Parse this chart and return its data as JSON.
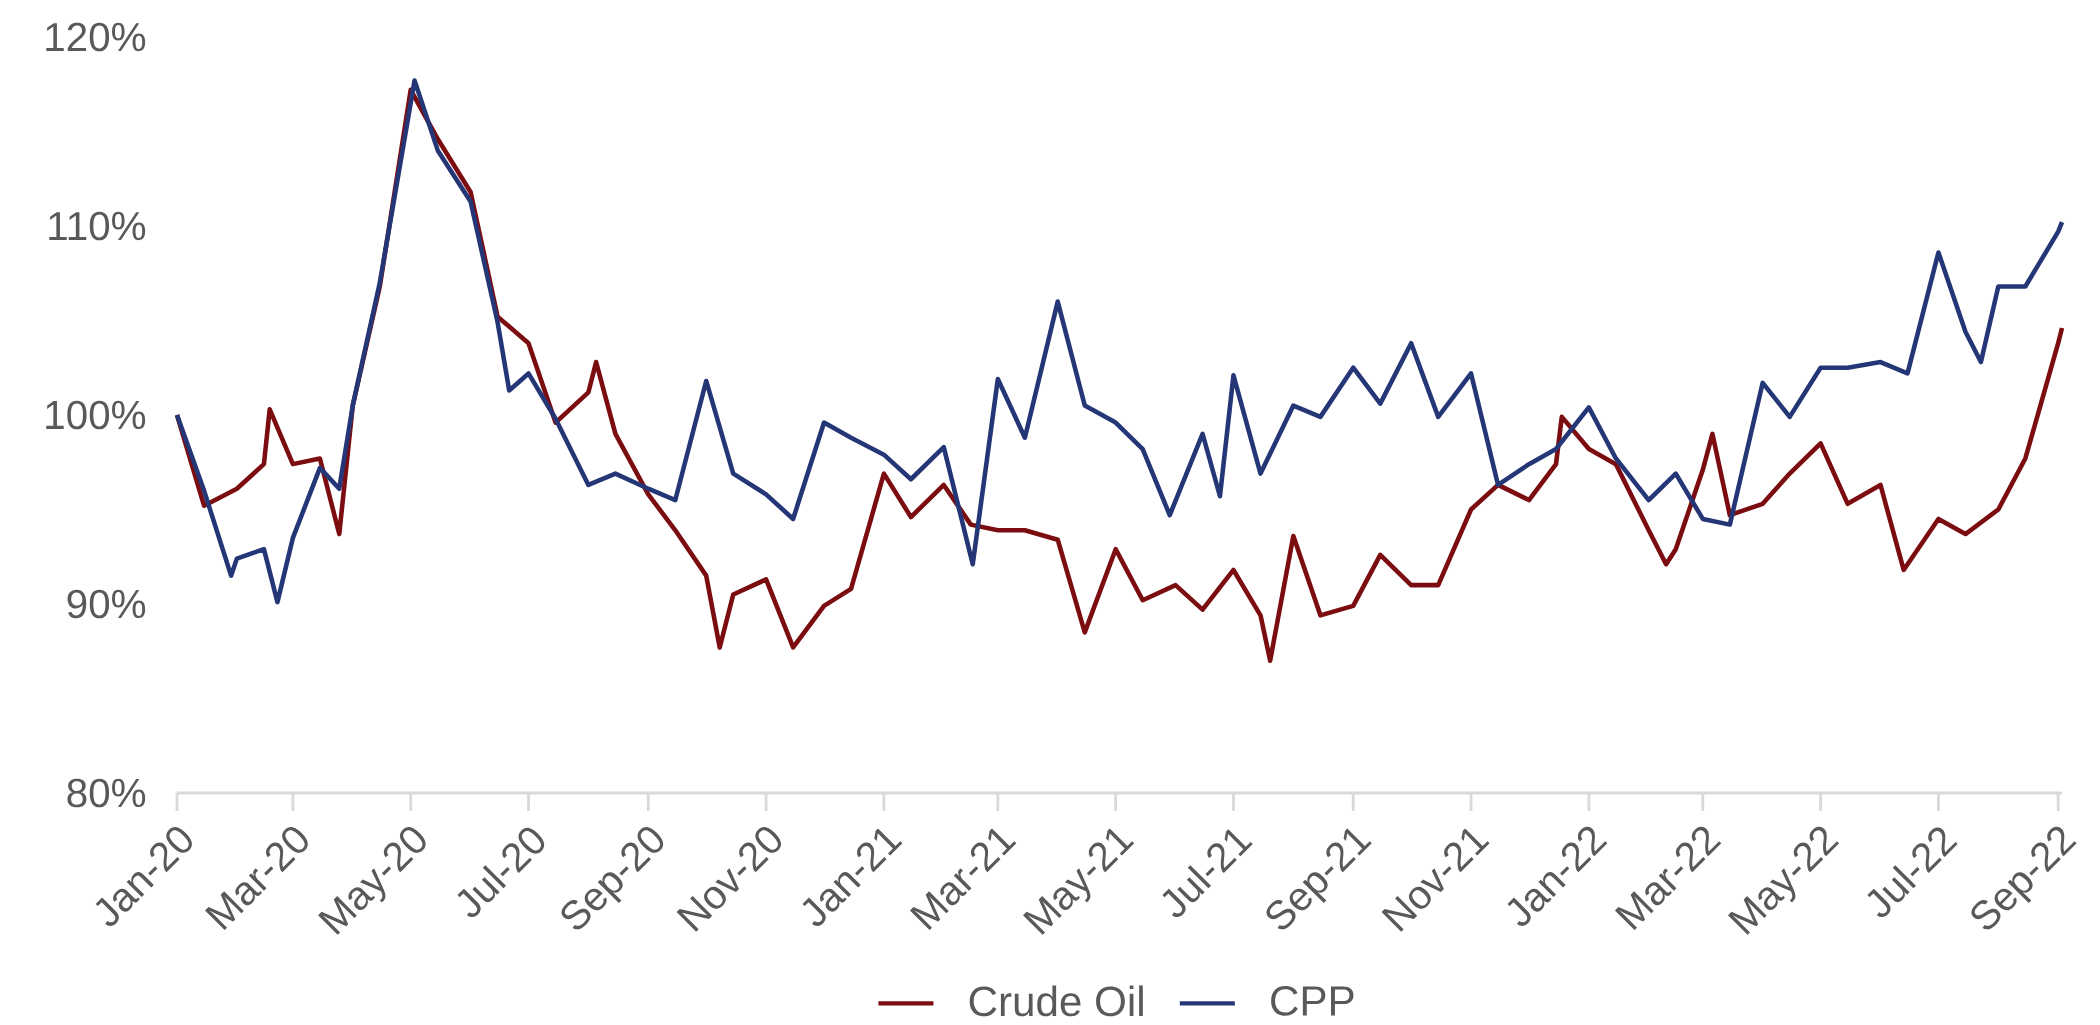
{
  "chart_data": {
    "type": "line",
    "xlim": [
      "2020-01-01",
      "2022-09-03"
    ],
    "xticks": [
      {
        "value": "2020-01-01",
        "label": "Jan-20"
      },
      {
        "value": "2020-03-01",
        "label": "Mar-20"
      },
      {
        "value": "2020-05-01",
        "label": "May-20"
      },
      {
        "value": "2020-07-01",
        "label": "Jul-20"
      },
      {
        "value": "2020-09-01",
        "label": "Sep-20"
      },
      {
        "value": "2020-11-01",
        "label": "Nov-20"
      },
      {
        "value": "2021-01-01",
        "label": "Jan-21"
      },
      {
        "value": "2021-03-01",
        "label": "Mar-21"
      },
      {
        "value": "2021-05-01",
        "label": "May-21"
      },
      {
        "value": "2021-07-01",
        "label": "Jul-21"
      },
      {
        "value": "2021-09-01",
        "label": "Sep-21"
      },
      {
        "value": "2021-11-01",
        "label": "Nov-21"
      },
      {
        "value": "2022-01-01",
        "label": "Jan-22"
      },
      {
        "value": "2022-03-01",
        "label": "Mar-22"
      },
      {
        "value": "2022-05-01",
        "label": "May-22"
      },
      {
        "value": "2022-07-01",
        "label": "Jul-22"
      },
      {
        "value": "2022-09-01",
        "label": "Sep-22"
      }
    ],
    "ylim": [
      80,
      120
    ],
    "yticks": [
      {
        "value": 80,
        "label": "80%"
      },
      {
        "value": 90,
        "label": "90%"
      },
      {
        "value": 100,
        "label": "100%"
      },
      {
        "value": 110,
        "label": "110%"
      },
      {
        "value": 120,
        "label": "120%"
      }
    ],
    "legend": "bottom",
    "series": [
      {
        "name": "Crude Oil",
        "color": "#7b0c10",
        "x": [
          "2020-01-01",
          "2020-01-15",
          "2020-02-01",
          "2020-02-15",
          "2020-02-18",
          "2020-03-01",
          "2020-03-15",
          "2020-03-25",
          "2020-04-01",
          "2020-04-15",
          "2020-05-01",
          "2020-05-15",
          "2020-06-01",
          "2020-06-15",
          "2020-07-01",
          "2020-07-15",
          "2020-08-01",
          "2020-08-05",
          "2020-08-15",
          "2020-09-01",
          "2020-09-15",
          "2020-10-01",
          "2020-10-08",
          "2020-10-15",
          "2020-11-01",
          "2020-11-15",
          "2020-12-01",
          "2020-12-15",
          "2021-01-01",
          "2021-01-15",
          "2021-02-01",
          "2021-02-15",
          "2021-03-01",
          "2021-03-15",
          "2021-04-01",
          "2021-04-15",
          "2021-05-01",
          "2021-05-15",
          "2021-06-01",
          "2021-06-15",
          "2021-07-01",
          "2021-07-15",
          "2021-07-20",
          "2021-08-01",
          "2021-08-15",
          "2021-09-01",
          "2021-09-15",
          "2021-10-01",
          "2021-10-15",
          "2021-11-01",
          "2021-11-15",
          "2021-12-01",
          "2021-12-15",
          "2021-12-18",
          "2022-01-01",
          "2022-01-15",
          "2022-02-01",
          "2022-02-10",
          "2022-02-15",
          "2022-03-01",
          "2022-03-06",
          "2022-03-15",
          "2022-04-01",
          "2022-04-15",
          "2022-05-01",
          "2022-05-15",
          "2022-06-01",
          "2022-06-13",
          "2022-07-01",
          "2022-07-15",
          "2022-08-01",
          "2022-08-15",
          "2022-09-01",
          "2022-09-03"
        ],
        "values": [
          100,
          95.2,
          96.1,
          97.4,
          100.3,
          97.4,
          97.7,
          93.7,
          100.5,
          106.8,
          117.2,
          114.6,
          111.8,
          105.2,
          103.8,
          99.6,
          101.2,
          102.8,
          99.0,
          95.8,
          93.9,
          91.5,
          87.7,
          90.5,
          91.3,
          87.7,
          89.9,
          90.8,
          96.9,
          94.6,
          96.3,
          94.2,
          93.9,
          93.9,
          93.4,
          88.5,
          92.9,
          90.2,
          91.0,
          89.7,
          91.8,
          89.4,
          87.0,
          93.6,
          89.4,
          89.9,
          92.6,
          91.0,
          91.0,
          95.0,
          96.3,
          95.5,
          97.4,
          99.9,
          98.2,
          97.4,
          93.9,
          92.1,
          92.9,
          97.1,
          99.0,
          94.7,
          95.3,
          96.9,
          98.5,
          95.3,
          96.3,
          91.8,
          94.5,
          93.7,
          95.0,
          97.7,
          103.8,
          104.6
        ]
      },
      {
        "name": "CPP",
        "color": "#253677",
        "x": [
          "2020-01-01",
          "2020-01-15",
          "2020-01-29",
          "2020-02-01",
          "2020-02-15",
          "2020-02-22",
          "2020-03-01",
          "2020-03-15",
          "2020-03-25",
          "2020-04-01",
          "2020-04-15",
          "2020-05-01",
          "2020-05-03",
          "2020-05-15",
          "2020-06-01",
          "2020-06-15",
          "2020-06-21",
          "2020-07-01",
          "2020-07-15",
          "2020-08-01",
          "2020-08-15",
          "2020-09-01",
          "2020-09-15",
          "2020-10-01",
          "2020-10-15",
          "2020-11-01",
          "2020-11-15",
          "2020-12-01",
          "2020-12-15",
          "2021-01-01",
          "2021-01-15",
          "2021-02-01",
          "2021-02-16",
          "2021-03-01",
          "2021-03-15",
          "2021-04-01",
          "2021-04-15",
          "2021-05-01",
          "2021-05-15",
          "2021-05-29",
          "2021-06-15",
          "2021-06-24",
          "2021-07-01",
          "2021-07-15",
          "2021-08-01",
          "2021-08-15",
          "2021-09-01",
          "2021-09-15",
          "2021-10-01",
          "2021-10-15",
          "2021-11-01",
          "2021-11-15",
          "2021-12-01",
          "2021-12-15",
          "2022-01-01",
          "2022-01-15",
          "2022-02-01",
          "2022-02-15",
          "2022-03-01",
          "2022-03-15",
          "2022-04-01",
          "2022-04-15",
          "2022-05-01",
          "2022-05-15",
          "2022-06-01",
          "2022-06-15",
          "2022-07-01",
          "2022-07-15",
          "2022-07-23",
          "2022-08-01",
          "2022-08-15",
          "2022-09-01",
          "2022-09-03"
        ],
        "values": [
          100,
          96.0,
          91.5,
          92.4,
          92.9,
          90.1,
          93.5,
          97.2,
          96.1,
          100.5,
          107.0,
          116.5,
          117.7,
          114.0,
          111.3,
          104.9,
          101.3,
          102.2,
          99.8,
          96.3,
          96.9,
          96.1,
          95.5,
          101.8,
          96.9,
          95.8,
          94.5,
          99.6,
          98.8,
          97.9,
          96.6,
          98.3,
          92.1,
          101.9,
          98.8,
          106.0,
          100.5,
          99.6,
          98.2,
          94.7,
          99.0,
          95.7,
          102.1,
          96.9,
          100.5,
          99.9,
          102.5,
          100.6,
          103.8,
          99.9,
          102.2,
          96.3,
          97.4,
          98.2,
          100.4,
          97.7,
          95.5,
          96.9,
          94.5,
          94.2,
          101.7,
          99.9,
          102.5,
          102.5,
          102.8,
          102.2,
          108.6,
          104.4,
          102.8,
          106.8,
          106.8,
          109.7,
          110.2
        ]
      }
    ]
  }
}
